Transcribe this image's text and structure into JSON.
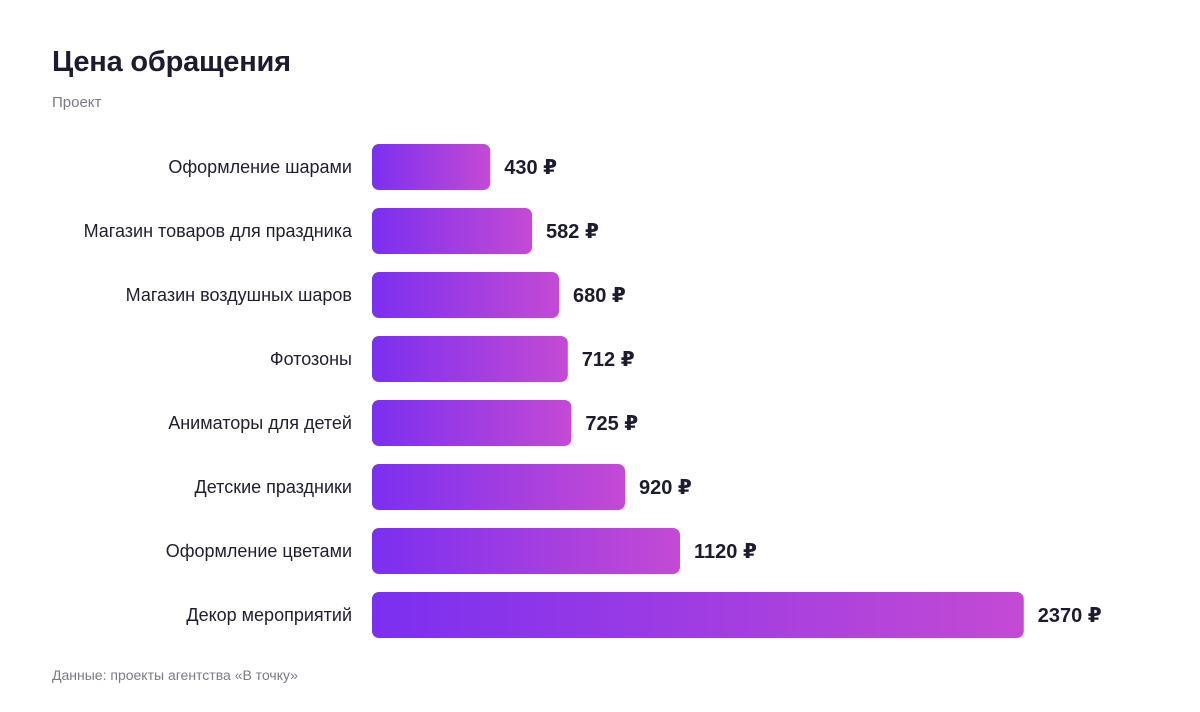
{
  "header": {
    "title": "Цена обращения",
    "subtitle": "Проект"
  },
  "footer": {
    "source": "Данные: проекты агентства «В точку»"
  },
  "colors": {
    "bar_start": "#7b2ff0",
    "bar_end": "#c44ad4",
    "text": "#1c1c2e",
    "muted": "#7a7a88"
  },
  "chart_data": {
    "type": "bar",
    "orientation": "horizontal",
    "title": "Цена обращения",
    "subtitle": "Проект",
    "categories": [
      "Оформление шарами",
      "Магазин товаров для праздника",
      "Магазин воздушных шаров",
      "Фотозоны",
      "Аниматоры для детей",
      "Детские праздники",
      "Оформление цветами",
      "Декор мероприятий"
    ],
    "values": [
      430,
      582,
      680,
      712,
      725,
      920,
      1120,
      2370
    ],
    "value_labels": [
      "430 ₽",
      "582 ₽",
      "680 ₽",
      "712 ₽",
      "725 ₽",
      "920 ₽",
      "1120 ₽",
      "2370 ₽"
    ],
    "unit": "₽",
    "xlim": [
      0,
      2400
    ],
    "grid": false,
    "legend": "none"
  }
}
